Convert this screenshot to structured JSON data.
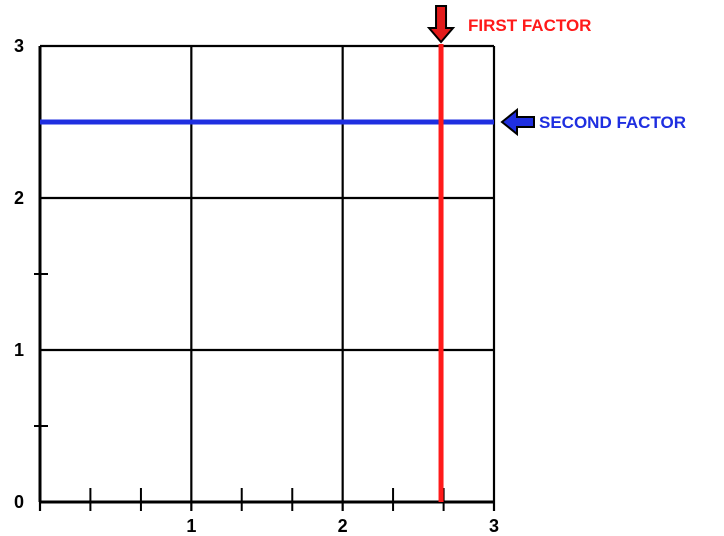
{
  "diagram": {
    "x_ticks": {
      "labels": [
        {
          "value": 0,
          "text": "0"
        },
        {
          "value": 1,
          "text": "1"
        },
        {
          "value": 2,
          "text": "2"
        },
        {
          "value": 3,
          "text": "3"
        }
      ],
      "minor": [
        0.333,
        0.667,
        1.333,
        1.667,
        2.333,
        2.667
      ]
    },
    "y_ticks": {
      "labels": [
        {
          "value": 1,
          "text": "1"
        },
        {
          "value": 2,
          "text": "2"
        },
        {
          "value": 3,
          "text": "3"
        }
      ],
      "minor": [
        0.5,
        1.5
      ]
    },
    "xlim": [
      0,
      3
    ],
    "ylim": [
      0,
      3
    ],
    "grid": true,
    "first_factor": {
      "label": "FIRST FACTOR",
      "value": 2.65,
      "color": "#ff1a1a",
      "orientation": "vertical"
    },
    "second_factor": {
      "label": "SECOND FACTOR",
      "value": 2.5,
      "color": "#1f2fe0",
      "orientation": "horizontal"
    },
    "arrow_fill": {
      "first": "#e31b1b",
      "second": "#1f2fe0"
    },
    "arrow_outline": "#000000",
    "grid_color": "#000000"
  }
}
